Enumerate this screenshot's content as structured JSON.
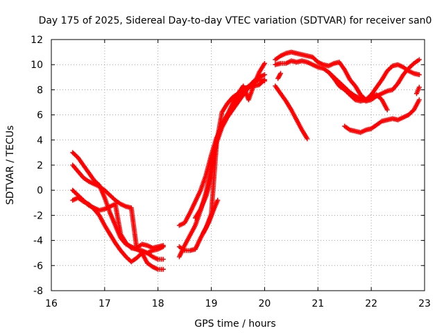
{
  "chart_data": {
    "type": "scatter",
    "title": "Day 175 of 2025, Sidereal Day-to-day VTEC variation (SDTVAR) for receiver san0",
    "xlabel": "GPS time / hours",
    "ylabel": "SDTVAR / TECUs",
    "xlim": [
      16,
      23
    ],
    "ylim": [
      -8,
      12
    ],
    "xticks": [
      "16",
      "17",
      "18",
      "19",
      "20",
      "21",
      "22",
      "23"
    ],
    "yticks": [
      "-8",
      "-6",
      "-4",
      "-2",
      "0",
      "2",
      "4",
      "6",
      "8",
      "10",
      "12"
    ],
    "grid": true,
    "marker": "+",
    "color": "#ff0000",
    "series": [
      {
        "name": "s1",
        "x": [
          16.4,
          16.5,
          16.6,
          16.7,
          16.8,
          16.9,
          17.0,
          17.1,
          17.2,
          17.3,
          17.4,
          17.5,
          17.6,
          17.7,
          17.8,
          17.9,
          18.0,
          18.1
        ],
        "y": [
          3.0,
          2.6,
          2.0,
          1.4,
          0.8,
          0.4,
          -0.6,
          -1.8,
          -2.8,
          -3.8,
          -4.3,
          -4.5,
          -4.7,
          -4.9,
          -5.0,
          -4.8,
          -4.7,
          -4.5
        ]
      },
      {
        "name": "s2",
        "x": [
          16.4,
          16.5,
          16.6,
          16.7,
          16.8,
          16.9,
          17.0,
          17.1,
          17.2,
          17.3,
          17.4,
          17.5,
          17.6,
          17.7,
          17.8,
          17.9,
          18.0,
          18.1
        ],
        "y": [
          2.0,
          1.5,
          1.0,
          0.7,
          0.5,
          0.3,
          0.0,
          -0.4,
          -0.8,
          -1.1,
          -1.3,
          -1.4,
          -4.6,
          -4.3,
          -4.4,
          -4.6,
          -4.5,
          -4.4
        ]
      },
      {
        "name": "s3",
        "x": [
          16.4,
          16.5,
          16.6,
          16.7,
          16.8,
          16.9,
          17.0,
          17.1,
          17.2,
          17.3,
          17.4,
          17.5,
          17.6,
          17.7,
          17.8,
          17.9,
          18.0,
          18.1
        ],
        "y": [
          0.0,
          -0.4,
          -0.8,
          -1.2,
          -1.4,
          -1.6,
          -1.5,
          -1.3,
          -1.1,
          -3.5,
          -4.2,
          -4.6,
          -4.7,
          -4.8,
          -5.0,
          -5.3,
          -5.5,
          -5.5
        ]
      },
      {
        "name": "s4",
        "x": [
          16.4,
          16.5,
          16.6,
          16.7,
          16.8,
          16.9,
          17.0,
          17.1,
          17.2,
          17.3,
          17.4,
          17.5,
          17.6,
          17.7,
          17.8,
          17.9,
          18.0,
          18.1
        ],
        "y": [
          -0.8,
          -0.6,
          -0.9,
          -1.1,
          -1.5,
          -2.0,
          -2.8,
          -3.5,
          -4.2,
          -4.8,
          -5.3,
          -5.7,
          -5.4,
          -5.0,
          -5.8,
          -6.1,
          -6.3,
          -6.3
        ]
      },
      {
        "name": "s5",
        "x": [
          18.4,
          18.5,
          18.6,
          18.7,
          18.8,
          18.9,
          19.0,
          19.1,
          19.2,
          19.3,
          19.4,
          19.5,
          19.6,
          19.7,
          19.8,
          19.9,
          20.0
        ],
        "y": [
          -2.8,
          -2.6,
          -1.8,
          -0.9,
          0.0,
          1.2,
          2.8,
          4.2,
          5.0,
          5.8,
          6.4,
          7.0,
          7.6,
          8.2,
          8.7,
          9.0,
          9.2
        ]
      },
      {
        "name": "s6",
        "x": [
          18.4,
          18.5,
          18.6,
          18.7,
          18.8,
          18.9,
          19.0,
          19.1,
          19.2,
          19.3,
          19.4,
          19.5,
          19.6,
          19.7,
          19.8,
          19.9,
          20.0
        ],
        "y": [
          -5.3,
          -4.4,
          -3.6,
          -2.8,
          -1.6,
          -0.2,
          1.8,
          4.0,
          5.3,
          6.0,
          6.6,
          7.2,
          7.8,
          8.3,
          8.6,
          8.8,
          8.7
        ]
      },
      {
        "name": "s7",
        "x": [
          18.4,
          18.5,
          18.6,
          18.7,
          18.8,
          18.9,
          19.0,
          19.1,
          19.2,
          19.3,
          19.4,
          19.5,
          19.6,
          19.7,
          19.8,
          19.9,
          20.0
        ],
        "y": [
          -4.5,
          -4.8,
          -4.8,
          -4.7,
          -3.8,
          -3.0,
          -1.9,
          3.8,
          6.2,
          6.9,
          7.4,
          7.7,
          8.1,
          8.2,
          8.3,
          8.4,
          8.8
        ]
      },
      {
        "name": "s8",
        "x": [
          18.7,
          18.8,
          18.9,
          19.0,
          19.1,
          19.2,
          19.3,
          19.4,
          19.5,
          19.6,
          19.7,
          19.8,
          19.9,
          20.0
        ],
        "y": [
          -2.2,
          -1.5,
          -0.5,
          1.0,
          3.8,
          5.0,
          6.0,
          6.9,
          7.7,
          8.3,
          7.2,
          8.4,
          9.4,
          10.1
        ]
      },
      {
        "name": "s9",
        "x": [
          18.85,
          18.95,
          19.05,
          19.12
        ],
        "y": [
          -3.4,
          -2.6,
          -1.5,
          -0.8
        ]
      },
      {
        "name": "s10",
        "x": [
          20.2,
          20.3,
          20.4,
          20.5,
          20.6,
          20.7,
          20.8
        ],
        "y": [
          8.3,
          7.7,
          7.1,
          6.4,
          5.6,
          4.8,
          4.1
        ]
      },
      {
        "name": "s11",
        "x": [
          20.25,
          20.3
        ],
        "y": [
          8.9,
          9.3
        ]
      },
      {
        "name": "s12",
        "x": [
          20.2,
          20.3,
          20.4,
          20.5,
          20.6,
          20.7,
          20.8,
          20.9,
          21.0,
          21.1,
          21.2,
          21.3,
          21.4,
          21.5,
          21.6,
          21.7,
          21.8,
          21.9,
          22.0,
          22.1,
          22.2,
          22.3,
          22.4,
          22.5,
          22.6,
          22.7,
          22.8,
          22.9
        ],
        "y": [
          10.4,
          10.7,
          10.9,
          11.0,
          10.9,
          10.8,
          10.7,
          10.6,
          10.2,
          10.0,
          9.9,
          10.1,
          10.2,
          9.6,
          8.8,
          8.3,
          7.6,
          7.2,
          7.6,
          8.2,
          8.8,
          9.5,
          9.9,
          10.0,
          9.8,
          9.5,
          9.3,
          9.2
        ]
      },
      {
        "name": "s13",
        "x": [
          20.2,
          20.3,
          20.4,
          20.5,
          20.6,
          20.7,
          20.8,
          20.9,
          21.0,
          21.1,
          21.2,
          21.3,
          21.4,
          21.5,
          21.6,
          21.7,
          21.8,
          21.9,
          22.0,
          22.1,
          22.2,
          22.3
        ],
        "y": [
          10.0,
          10.1,
          10.1,
          10.3,
          10.2,
          10.3,
          10.2,
          10.0,
          9.8,
          9.7,
          9.4,
          8.9,
          8.3,
          8.0,
          7.6,
          7.2,
          7.1,
          7.2,
          7.5,
          7.6,
          7.2,
          6.4
        ]
      },
      {
        "name": "s14",
        "x": [
          21.2,
          21.3,
          21.4,
          21.5,
          21.6,
          21.7,
          21.8,
          21.9,
          22.0,
          22.1,
          22.2,
          22.3,
          22.4,
          22.5,
          22.6,
          22.7,
          22.8,
          22.9
        ],
        "y": [
          9.4,
          9.0,
          8.6,
          8.2,
          7.8,
          7.5,
          7.3,
          7.1,
          7.2,
          7.5,
          7.7,
          7.9,
          8.0,
          8.5,
          9.2,
          9.7,
          10.1,
          10.4
        ]
      },
      {
        "name": "s15",
        "x": [
          21.5,
          21.6,
          21.7,
          21.8,
          21.9,
          22.0,
          22.1,
          22.2,
          22.3,
          22.4,
          22.5,
          22.6,
          22.7,
          22.8,
          22.9
        ],
        "y": [
          5.1,
          4.8,
          4.7,
          4.6,
          4.8,
          4.9,
          5.2,
          5.5,
          5.6,
          5.7,
          5.6,
          5.8,
          6.0,
          6.4,
          7.2
        ]
      },
      {
        "name": "s16",
        "x": [
          22.85,
          22.9
        ],
        "y": [
          7.7,
          8.2
        ]
      }
    ]
  }
}
